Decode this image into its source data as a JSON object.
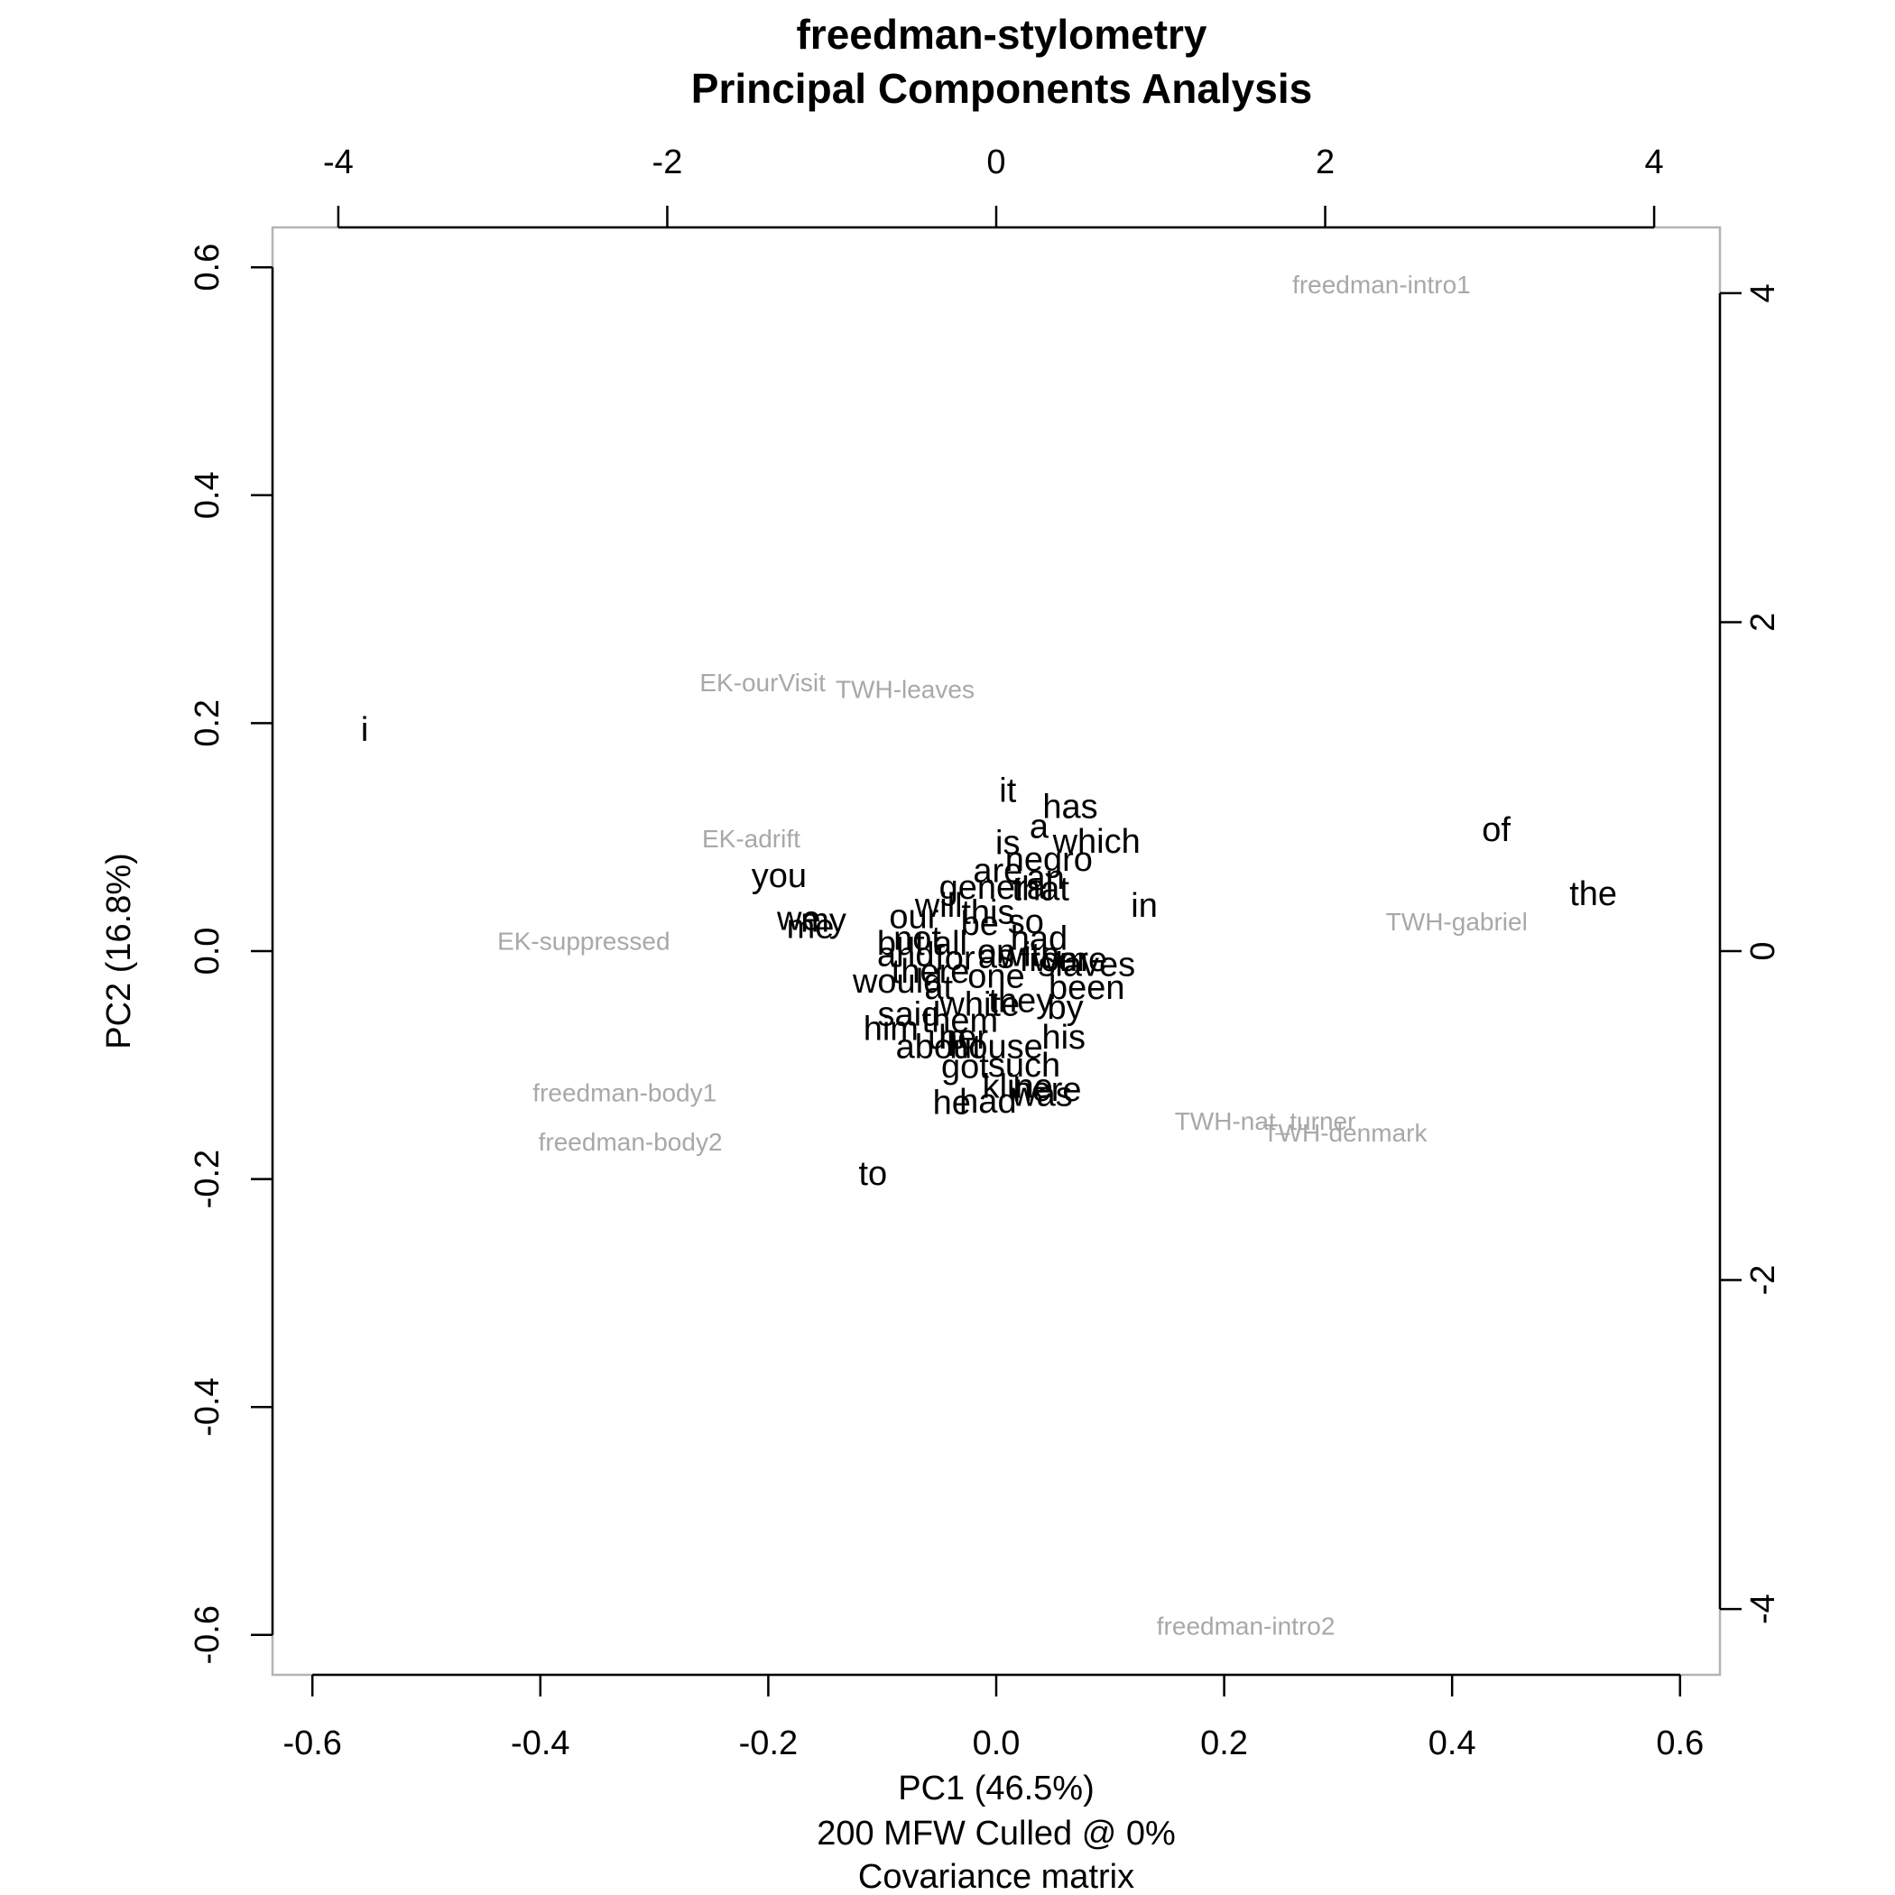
{
  "chart_data": {
    "type": "scatter",
    "title": "freedman-stylometry",
    "subtitle": "Principal Components Analysis",
    "xlabel": "PC1 (46.5%)",
    "xlabel_line2": "200 MFW  Culled @ 0%",
    "xlabel_line3": "Covariance matrix",
    "ylabel": "PC2 (16.8%)",
    "xlim": [
      -0.635,
      0.635
    ],
    "ylim": [
      -0.635,
      0.635
    ],
    "x_ticks": [
      "-0.6",
      "-0.4",
      "-0.2",
      "0.0",
      "0.2",
      "0.4",
      "0.6"
    ],
    "y_ticks": [
      "-0.6",
      "-0.4",
      "-0.2",
      "0.0",
      "0.2",
      "0.4",
      "0.6"
    ],
    "loadings_lim": [
      -4.4,
      4.4
    ],
    "top_ticks": [
      "-4",
      "-2",
      "0",
      "2",
      "4"
    ],
    "right_ticks": [
      "-4",
      "-2",
      "0",
      "2",
      "4"
    ],
    "grid": false,
    "documents": [
      {
        "label": "freedman-intro1",
        "x": 0.338,
        "y": 0.585
      },
      {
        "label": "EK-ourVisit",
        "x": -0.205,
        "y": 0.236
      },
      {
        "label": "TWH-leaves",
        "x": -0.08,
        "y": 0.23
      },
      {
        "label": "EK-adrift",
        "x": -0.215,
        "y": 0.099
      },
      {
        "label": "EK-suppressed",
        "x": -0.362,
        "y": 0.009
      },
      {
        "label": "TWH-gabriel",
        "x": 0.404,
        "y": 0.026
      },
      {
        "label": "freedman-body1",
        "x": -0.326,
        "y": -0.124
      },
      {
        "label": "freedman-body2",
        "x": -0.321,
        "y": -0.167
      },
      {
        "label": "TWH-nat_turner",
        "x": 0.236,
        "y": -0.149
      },
      {
        "label": "TWH-denmark",
        "x": 0.306,
        "y": -0.159
      },
      {
        "label": "freedman-intro2",
        "x": 0.219,
        "y": -0.592
      }
    ],
    "words": [
      {
        "label": "i",
        "x": -3.84,
        "y": 1.35
      },
      {
        "label": "of",
        "x": 3.04,
        "y": 0.74
      },
      {
        "label": "the",
        "x": 3.63,
        "y": 0.35
      },
      {
        "label": "to",
        "x": -0.75,
        "y": -1.35
      },
      {
        "label": "in",
        "x": 0.9,
        "y": 0.28
      },
      {
        "label": "it",
        "x": 0.07,
        "y": 0.98
      },
      {
        "label": "has",
        "x": 0.45,
        "y": 0.88
      },
      {
        "label": "a",
        "x": 0.26,
        "y": 0.76
      },
      {
        "label": "which",
        "x": 0.61,
        "y": 0.67
      },
      {
        "label": "is",
        "x": 0.07,
        "y": 0.66
      },
      {
        "label": "negro",
        "x": 0.32,
        "y": 0.56
      },
      {
        "label": "are",
        "x": 0.01,
        "y": 0.49
      },
      {
        "label": "an",
        "x": 0.3,
        "y": 0.45
      },
      {
        "label": "general",
        "x": 0.0,
        "y": 0.39
      },
      {
        "label": "that",
        "x": 0.27,
        "y": 0.38
      },
      {
        "label": "you",
        "x": -1.32,
        "y": 0.46
      },
      {
        "label": "we",
        "x": -1.2,
        "y": 0.2
      },
      {
        "label": "my",
        "x": -1.05,
        "y": 0.19
      },
      {
        "label": "me",
        "x": -1.13,
        "y": 0.15
      },
      {
        "label": "will",
        "x": -0.35,
        "y": 0.28
      },
      {
        "label": "our",
        "x": -0.5,
        "y": 0.21
      },
      {
        "label": "this",
        "x": -0.05,
        "y": 0.24
      },
      {
        "label": "be",
        "x": -0.1,
        "y": 0.17
      },
      {
        "label": "so",
        "x": 0.18,
        "y": 0.18
      },
      {
        "label": "but",
        "x": -0.58,
        "y": 0.05
      },
      {
        "label": "not",
        "x": -0.48,
        "y": 0.08
      },
      {
        "label": "all",
        "x": -0.28,
        "y": 0.05
      },
      {
        "label": "had",
        "x": 0.26,
        "y": 0.08
      },
      {
        "label": "on",
        "x": 0.0,
        "y": 0.0
      },
      {
        "label": "and",
        "x": -0.55,
        "y": -0.02
      },
      {
        "label": "for",
        "x": -0.25,
        "y": -0.04
      },
      {
        "label": "as",
        "x": 0.0,
        "y": -0.03
      },
      {
        "label": "with",
        "x": 0.2,
        "y": -0.02
      },
      {
        "label": "from",
        "x": 0.35,
        "y": -0.05
      },
      {
        "label": "were",
        "x": 0.45,
        "y": -0.05
      },
      {
        "label": "slaves",
        "x": 0.55,
        "y": -0.08
      },
      {
        "label": "there",
        "x": -0.4,
        "y": -0.12
      },
      {
        "label": "would",
        "x": -0.6,
        "y": -0.18
      },
      {
        "label": "at",
        "x": -0.35,
        "y": -0.22
      },
      {
        "label": "one",
        "x": 0.0,
        "y": -0.15
      },
      {
        "label": "been",
        "x": 0.55,
        "y": -0.22
      },
      {
        "label": "white",
        "x": -0.1,
        "y": -0.32
      },
      {
        "label": "they",
        "x": 0.15,
        "y": -0.3
      },
      {
        "label": "by",
        "x": 0.42,
        "y": -0.34
      },
      {
        "label": "said",
        "x": -0.53,
        "y": -0.38
      },
      {
        "label": "them",
        "x": -0.22,
        "y": -0.42
      },
      {
        "label": "him",
        "x": -0.64,
        "y": -0.47
      },
      {
        "label": "up",
        "x": -0.3,
        "y": -0.52
      },
      {
        "label": "her",
        "x": -0.2,
        "y": -0.52
      },
      {
        "label": "his",
        "x": 0.41,
        "y": -0.52
      },
      {
        "label": "about",
        "x": -0.35,
        "y": -0.58
      },
      {
        "label": "house",
        "x": 0.0,
        "y": -0.58
      },
      {
        "label": "got",
        "x": -0.19,
        "y": -0.7
      },
      {
        "label": "such",
        "x": 0.17,
        "y": -0.69
      },
      {
        "label": "kline",
        "x": 0.13,
        "y": -0.82
      },
      {
        "label": "was",
        "x": 0.28,
        "y": -0.87
      },
      {
        "label": "here",
        "x": 0.31,
        "y": -0.84
      },
      {
        "label": "had",
        "x": -0.05,
        "y": -0.91
      },
      {
        "label": "he",
        "x": -0.27,
        "y": -0.92
      }
    ]
  }
}
